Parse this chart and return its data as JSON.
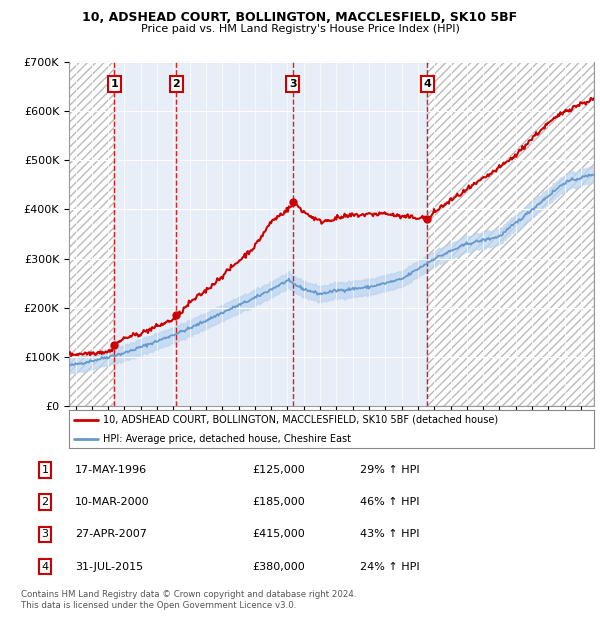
{
  "title1": "10, ADSHEAD COURT, BOLLINGTON, MACCLESFIELD, SK10 5BF",
  "title2": "Price paid vs. HM Land Registry's House Price Index (HPI)",
  "ylim": [
    0,
    700000
  ],
  "yticks": [
    0,
    100000,
    200000,
    300000,
    400000,
    500000,
    600000,
    700000
  ],
  "ytick_labels": [
    "£0",
    "£100K",
    "£200K",
    "£300K",
    "£400K",
    "£500K",
    "£600K",
    "£700K"
  ],
  "xlim_start": 1993.6,
  "xlim_end": 2025.8,
  "sale_dates": [
    1996.38,
    2000.19,
    2007.32,
    2015.58
  ],
  "sale_prices": [
    125000,
    185000,
    415000,
    380000
  ],
  "sale_labels": [
    "1",
    "2",
    "3",
    "4"
  ],
  "legend_line1": "10, ADSHEAD COURT, BOLLINGTON, MACCLESFIELD, SK10 5BF (detached house)",
  "legend_line2": "HPI: Average price, detached house, Cheshire East",
  "table_rows": [
    [
      "1",
      "17-MAY-1996",
      "£125,000",
      "29% ↑ HPI"
    ],
    [
      "2",
      "10-MAR-2000",
      "£185,000",
      "46% ↑ HPI"
    ],
    [
      "3",
      "27-APR-2007",
      "£415,000",
      "43% ↑ HPI"
    ],
    [
      "4",
      "31-JUL-2015",
      "£380,000",
      "24% ↑ HPI"
    ]
  ],
  "footer1": "Contains HM Land Registry data © Crown copyright and database right 2024.",
  "footer2": "This data is licensed under the Open Government Licence v3.0.",
  "red_color": "#cc0000",
  "blue_color": "#6699cc",
  "blue_fill_color": "#bad4f0",
  "bg_color": "#ffffff",
  "plot_bg_color": "#e8eef8"
}
